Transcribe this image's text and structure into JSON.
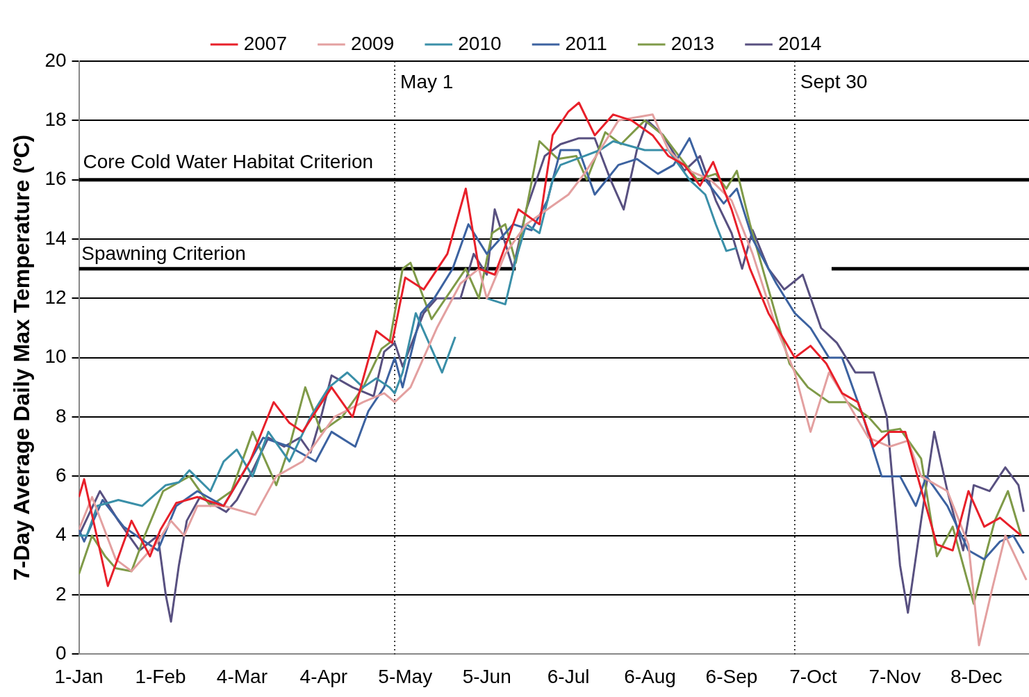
{
  "chart_data": {
    "type": "line",
    "ylabel": "7-Day Average Daily Max Temperature (ºC)",
    "xlim": [
      "--01-01",
      "--12-28"
    ],
    "xticks": [
      {
        "value": "--01-01",
        "label": "1-Jan"
      },
      {
        "value": "--02-01",
        "label": "1-Feb"
      },
      {
        "value": "--03-04",
        "label": "4-Mar"
      },
      {
        "value": "--04-04",
        "label": "4-Apr"
      },
      {
        "value": "--05-05",
        "label": "5-May"
      },
      {
        "value": "--06-05",
        "label": "5-Jun"
      },
      {
        "value": "--07-06",
        "label": "6-Jul"
      },
      {
        "value": "--08-06",
        "label": "6-Aug"
      },
      {
        "value": "--09-06",
        "label": "6-Sep"
      },
      {
        "value": "--10-07",
        "label": "7-Oct"
      },
      {
        "value": "--11-07",
        "label": "7-Nov"
      },
      {
        "value": "--12-08",
        "label": "8-Dec"
      }
    ],
    "ylim": [
      0,
      20
    ],
    "yticks": [
      0,
      2,
      4,
      6,
      8,
      10,
      12,
      14,
      16,
      18,
      20
    ],
    "grid": "y",
    "legend": "top",
    "marker": "none",
    "line_style": "solid",
    "ref_lines": [
      {
        "axis": "y",
        "value": 16,
        "label": "Core Cold Water Habitat Criterion",
        "color": "#000000",
        "line_style": "solid"
      },
      {
        "axis": "x",
        "value": "--05-01",
        "label": "May 1",
        "color": "#000000",
        "line_style": "dotted"
      },
      {
        "axis": "x",
        "value": "--09-30",
        "label": "Sept 30",
        "color": "#000000",
        "line_style": "dotted"
      }
    ],
    "annotations": [
      {
        "text": "Spawning Criterion",
        "x": "--01-02",
        "y": 13
      }
    ],
    "series": [
      {
        "name": "2007",
        "color": "#e8202a",
        "x": [
          "--01-01",
          "--01-03",
          "--01-12",
          "--01-21",
          "--01-28",
          "--02-01",
          "--02-07",
          "--02-15",
          "--02-25",
          "--03-07",
          "--03-16",
          "--03-22",
          "--03-27",
          "--04-07",
          "--04-15",
          "--04-24",
          "--04-30",
          "--05-05",
          "--05-12",
          "--05-21",
          "--05-28",
          "--06-02",
          "--06-08",
          "--06-13",
          "--06-17",
          "--06-25",
          "--06-30",
          "--07-06",
          "--07-10",
          "--07-16",
          "--07-23",
          "--07-30",
          "--08-07",
          "--08-13",
          "--08-19",
          "--08-25",
          "--08-30",
          "--09-06",
          "--09-13",
          "--09-20",
          "--09-30",
          "--10-06",
          "--10-12",
          "--10-18",
          "--10-24",
          "--10-30",
          "--11-05",
          "--11-11",
          "--11-15",
          "--11-23",
          "--11-29",
          "--12-05",
          "--12-11",
          "--12-17",
          "--12-25"
        ],
        "values": [
          5.3,
          5.9,
          2.3,
          4.5,
          3.3,
          4.2,
          5.1,
          5.3,
          5,
          6.5,
          8.5,
          7.8,
          7.5,
          9,
          8,
          10.9,
          10.5,
          12.7,
          12.3,
          13.5,
          15.7,
          13,
          12.8,
          14,
          15,
          14.5,
          17.5,
          18.3,
          18.6,
          17.5,
          18.2,
          18,
          17.5,
          16.8,
          16.5,
          15.8,
          16.6,
          15,
          13,
          11.5,
          10,
          10.4,
          9.8,
          8.8,
          8.5,
          7,
          7.5,
          7.5,
          6.2,
          3.7,
          3.5,
          5.5,
          4.3,
          4.6,
          4
        ]
      },
      {
        "name": "2009",
        "color": "#e3a0a0",
        "x": [
          "--01-01",
          "--01-06",
          "--01-15",
          "--01-21",
          "--01-31",
          "--02-05",
          "--02-10",
          "--02-15",
          "--02-25",
          "--03-09",
          "--03-17",
          "--03-27",
          "--04-08",
          "--04-19",
          "--04-27",
          "--05-01",
          "--05-07",
          "--05-12",
          "--05-17",
          "--05-26",
          "--06-02",
          "--06-05",
          "--06-12",
          "--06-20",
          "--06-28",
          "--07-06",
          "--07-12",
          "--07-18",
          "--07-25",
          "--08-07",
          "--08-13",
          "--08-21",
          "--08-29",
          "--09-06",
          "--09-14",
          "--09-23",
          "--09-30",
          "--10-06",
          "--10-13",
          "--10-20",
          "--10-28",
          "--11-05",
          "--11-12",
          "--11-17",
          "--11-27",
          "--12-05",
          "--12-09",
          "--12-14",
          "--12-19",
          "--12-27"
        ],
        "values": [
          4.2,
          5.3,
          3.2,
          2.8,
          3.8,
          4.5,
          4,
          5,
          5,
          4.7,
          6,
          6.5,
          8,
          8.5,
          8.8,
          8.5,
          9,
          10,
          11,
          12.5,
          13,
          12,
          13.5,
          14.5,
          15,
          15.5,
          16.2,
          17,
          18,
          18.2,
          17,
          16.3,
          16,
          15.3,
          13.5,
          11,
          9.5,
          7.5,
          9.5,
          8.5,
          7.3,
          7,
          7.2,
          6,
          5.5,
          3.7,
          0.3,
          2.2,
          4,
          2.5
        ]
      },
      {
        "name": "2010",
        "color": "#3a8fa8",
        "x": [
          "--01-01",
          "--01-04",
          "--01-08",
          "--01-16",
          "--01-25",
          "--02-03",
          "--02-08",
          "--02-12",
          "--02-20",
          "--02-25",
          "--03-02",
          "--03-08",
          "--03-14",
          "--03-22",
          "--03-30",
          "--04-06",
          "--04-13",
          "--04-19",
          "--04-24",
          "--04-29",
          "--05-01",
          "--05-04",
          "--05-09",
          "--05-14",
          "--05-19",
          "--05-24",
          "--05-30",
          "--06-05",
          "--06-12",
          "--06-16",
          "--06-20",
          "--06-25",
          "--06-30",
          "--07-03",
          "--07-12",
          "--07-18",
          "--07-23",
          "--08-04",
          "--08-13",
          "--08-21",
          "--08-27",
          "--08-31",
          "--09-04",
          "--09-08"
        ],
        "values": [
          4,
          4,
          5,
          5.2,
          5,
          5.7,
          5.8,
          6.2,
          5.5,
          6.5,
          6.9,
          6,
          7.5,
          6.5,
          8,
          9,
          9.5,
          9,
          9.3,
          9,
          8.8,
          9.5,
          11.5,
          10.5,
          9.5,
          10.7,
          null,
          12,
          11.8,
          13.3,
          14.5,
          14.2,
          16,
          16.5,
          16.8,
          17,
          17.3,
          17,
          17,
          16,
          15.5,
          14.5,
          13.6,
          13.7
        ]
      },
      {
        "name": "2011",
        "color": "#3c62a0",
        "x": [
          "--01-01",
          "--01-03",
          "--01-10",
          "--01-18",
          "--01-26",
          "--01-31",
          "--02-07",
          "--02-15",
          "--02-25",
          "--03-05",
          "--03-12",
          "--03-22",
          "--04-01",
          "--04-07",
          "--04-16",
          "--04-21",
          "--04-27",
          "--05-01",
          "--05-04",
          "--05-11",
          "--05-16",
          "--05-23",
          "--05-29",
          "--06-05",
          "--06-15",
          "--06-22",
          "--06-28",
          "--07-03",
          "--07-10",
          "--07-16",
          "--07-25",
          "--08-01",
          "--08-09",
          "--08-15",
          "--08-21",
          "--08-27",
          "--09-03",
          "--09-08",
          "--09-14",
          "--09-23",
          "--09-30",
          "--10-06",
          "--10-13",
          "--10-18",
          "--10-26",
          "--11-02",
          "--11-09",
          "--11-15",
          "--11-19",
          "--11-27",
          "--12-05",
          "--12-11",
          "--12-17",
          "--12-22",
          "--12-26"
        ],
        "values": [
          4.2,
          3.8,
          5.2,
          4.3,
          3.8,
          3.5,
          5,
          5.5,
          5,
          6.2,
          7.3,
          7,
          6.5,
          7.5,
          7,
          8.2,
          9,
          10,
          9,
          11.5,
          12,
          13,
          14.5,
          13.5,
          14.5,
          14.3,
          15.3,
          17,
          17,
          15.5,
          16.5,
          16.7,
          16.2,
          16.5,
          17.4,
          16,
          15.2,
          15.7,
          14,
          12.5,
          11.5,
          11,
          10,
          10,
          8,
          6,
          6,
          5,
          6,
          5,
          3.5,
          3.2,
          3.8,
          4,
          3.4
        ]
      },
      {
        "name": "2013",
        "color": "#7f9a48",
        "x": [
          "--01-01",
          "--01-06",
          "--01-11",
          "--01-15",
          "--01-21",
          "--01-26",
          "--02-02",
          "--02-12",
          "--02-20",
          "--02-28",
          "--03-08",
          "--03-17",
          "--03-22",
          "--03-28",
          "--04-03",
          "--04-11",
          "--04-19",
          "--04-26",
          "--04-29",
          "--05-04",
          "--05-07",
          "--05-15",
          "--05-28",
          "--06-02",
          "--06-07",
          "--06-12",
          "--06-16",
          "--06-20",
          "--06-25",
          "--07-02",
          "--07-09",
          "--07-13",
          "--07-20",
          "--07-26",
          "--08-04",
          "--08-11",
          "--08-17",
          "--08-24",
          "--08-31",
          "--09-04",
          "--09-08",
          "--09-13",
          "--09-21",
          "--09-28",
          "--10-05",
          "--10-13",
          "--10-20",
          "--10-28",
          "--11-02",
          "--11-09",
          "--11-17",
          "--11-23",
          "--11-29",
          "--12-07",
          "--12-12",
          "--12-15",
          "--12-20",
          "--12-25"
        ],
        "values": [
          2.7,
          4,
          3.3,
          2.9,
          2.8,
          4,
          5.5,
          6,
          5,
          5.5,
          7.5,
          5.7,
          7,
          9,
          7.5,
          8,
          9,
          10.3,
          10.5,
          13,
          13.2,
          11.3,
          13,
          12,
          14.2,
          14.5,
          13.2,
          15,
          17.3,
          16.7,
          16.8,
          16,
          17.6,
          17.2,
          18,
          17.5,
          16.8,
          16,
          16.2,
          15.7,
          16.3,
          14.5,
          12,
          9.8,
          9,
          8.5,
          8.5,
          8,
          7.5,
          7.6,
          6.6,
          3.3,
          4.3,
          1.7,
          3.5,
          4.5,
          5.5,
          4
        ]
      },
      {
        "name": "2014",
        "color": "#585080",
        "x": [
          "--01-01",
          "--01-09",
          "--01-16",
          "--01-24",
          "--01-31",
          "--02-03",
          "--02-05",
          "--02-08",
          "--02-11",
          "--02-16",
          "--02-22",
          "--02-26",
          "--03-02",
          "--03-08",
          "--03-14",
          "--03-20",
          "--03-26",
          "--03-30",
          "--04-03",
          "--04-07",
          "--04-15",
          "--04-23",
          "--04-27",
          "--05-01",
          "--05-04",
          "--05-12",
          "--05-17",
          "--05-26",
          "--05-31",
          "--06-05",
          "--06-08",
          "--06-15",
          "--06-20",
          "--06-27",
          "--07-03",
          "--07-10",
          "--07-16",
          "--07-22",
          "--07-27",
          "--08-01",
          "--08-05",
          "--08-11",
          "--08-19",
          "--08-25",
          "--08-31",
          "--09-06",
          "--09-10",
          "--09-14",
          "--09-20",
          "--09-26",
          "--10-03",
          "--10-10",
          "--10-16",
          "--10-23",
          "--10-30",
          "--11-04",
          "--11-09",
          "--11-12",
          "--11-17",
          "--11-22",
          "--11-27",
          "--12-03",
          "--12-07",
          "--12-13",
          "--12-19",
          "--12-24",
          "--12-26"
        ],
        "values": [
          4,
          5.5,
          4.5,
          3.5,
          4,
          2,
          1.1,
          3,
          4.5,
          5.3,
          5,
          4.8,
          5.2,
          6.2,
          7.3,
          7,
          7.3,
          6.8,
          8,
          9.4,
          9,
          8.7,
          10.2,
          10.5,
          9.7,
          11.5,
          12,
          12,
          13.5,
          12.8,
          15,
          13,
          15,
          16.8,
          17.2,
          17.4,
          17.4,
          16,
          15,
          17,
          18,
          17.5,
          16.3,
          16.8,
          15.3,
          14.2,
          13,
          14.3,
          13,
          12.3,
          12.8,
          11,
          10.5,
          9.5,
          9.5,
          8,
          3,
          1.4,
          4.5,
          7.5,
          5.5,
          3.5,
          5.7,
          5.5,
          6.3,
          5.7,
          4.8
        ]
      },
      {
        "type": "line",
        "color": "#000000",
        "x": [
          "--01-01",
          "--06-16",
          "--08-15",
          "--10-14",
          "--12-28"
        ],
        "values": [
          13,
          13,
          null,
          13,
          13
        ]
      }
    ]
  }
}
